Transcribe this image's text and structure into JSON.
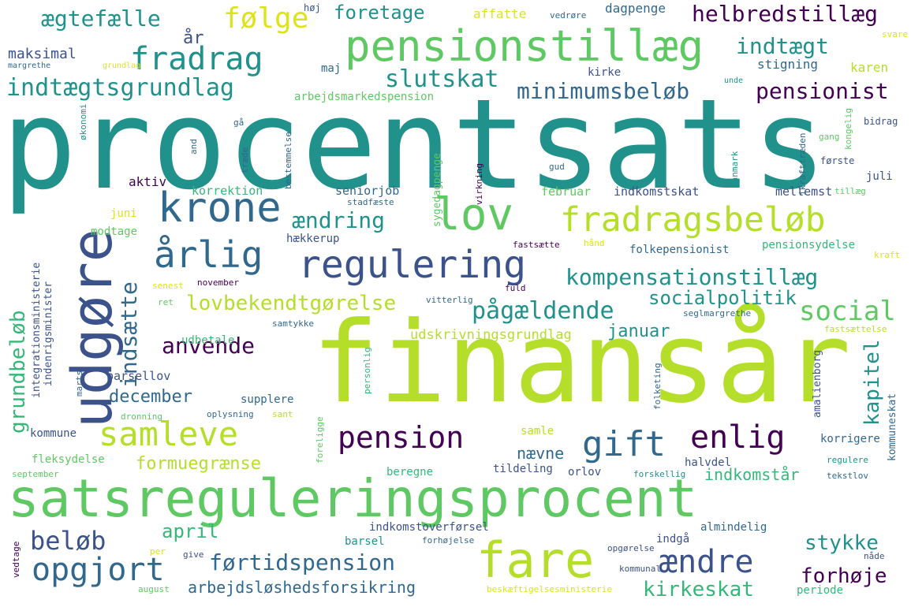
{
  "palette": {
    "background": "#ffffff",
    "dark_purple": "#440154",
    "indigo": "#3b528b",
    "teal_blue": "#31688e",
    "teal": "#21918c",
    "green_teal": "#35b779",
    "green": "#5ec962",
    "lime": "#b5de2b",
    "yellow": "#dce319"
  },
  "words": [
    {
      "text": "procentsats",
      "color": "#21918c"
    },
    {
      "text": "finansår",
      "color": "#b5de2b"
    },
    {
      "text": "satsreguleringsprocent",
      "color": "#5ec962"
    },
    {
      "text": "udgøre",
      "color": "#3b528b"
    },
    {
      "text": "pensionstillæg",
      "color": "#5ec962"
    },
    {
      "text": "fradrag",
      "color": "#21918c"
    },
    {
      "text": "krone",
      "color": "#31688e"
    },
    {
      "text": "lov",
      "color": "#5ec962"
    },
    {
      "text": "fradragsbeløb",
      "color": "#b5de2b"
    },
    {
      "text": "regulering",
      "color": "#3b528b"
    },
    {
      "text": "årlig",
      "color": "#31688e"
    },
    {
      "text": "samleve",
      "color": "#b5de2b"
    },
    {
      "text": "pension",
      "color": "#440154"
    },
    {
      "text": "gift",
      "color": "#31688e"
    },
    {
      "text": "enlig",
      "color": "#440154"
    },
    {
      "text": "fare",
      "color": "#b5de2b"
    },
    {
      "text": "opgjort",
      "color": "#31688e"
    },
    {
      "text": "ændre",
      "color": "#3b528b"
    },
    {
      "text": "indtægtsgrundlag",
      "color": "#21918c"
    },
    {
      "text": "ægtefælle",
      "color": "#21918c"
    },
    {
      "text": "følge",
      "color": "#dce319"
    },
    {
      "text": "foretage",
      "color": "#21918c"
    },
    {
      "text": "helbredstillæg",
      "color": "#440154"
    },
    {
      "text": "indtægt",
      "color": "#21918c"
    },
    {
      "text": "slutskat",
      "color": "#21918c"
    },
    {
      "text": "minimumsbeløb",
      "color": "#31688e"
    },
    {
      "text": "pensionist",
      "color": "#440154"
    },
    {
      "text": "kompensationstillæg",
      "color": "#21918c"
    },
    {
      "text": "ændring",
      "color": "#21918c"
    },
    {
      "text": "lovbekendtgørelse",
      "color": "#b5de2b"
    },
    {
      "text": "pågældende",
      "color": "#21918c"
    },
    {
      "text": "socialpolitik",
      "color": "#21918c"
    },
    {
      "text": "social",
      "color": "#5ec962"
    },
    {
      "text": "anvende",
      "color": "#440154"
    },
    {
      "text": "januar",
      "color": "#21918c"
    },
    {
      "text": "kapitel",
      "color": "#21918c"
    },
    {
      "text": "udskrivningsgrundlag",
      "color": "#b5de2b"
    },
    {
      "text": "december",
      "color": "#31688e"
    },
    {
      "text": "grundbeløb",
      "color": "#35b779"
    },
    {
      "text": "indsætte",
      "color": "#31688e"
    },
    {
      "text": "førtidspension",
      "color": "#31688e"
    },
    {
      "text": "arbejdsløshedsforsikring",
      "color": "#31688e"
    },
    {
      "text": "kirkeskat",
      "color": "#35b779"
    },
    {
      "text": "forhøje",
      "color": "#440154"
    },
    {
      "text": "stykke",
      "color": "#21918c"
    },
    {
      "text": "beløb",
      "color": "#3b528b"
    },
    {
      "text": "april",
      "color": "#35b779"
    },
    {
      "text": "formuegrænse",
      "color": "#b5de2b"
    },
    {
      "text": "nævne",
      "color": "#31688e"
    },
    {
      "text": "indkomstår",
      "color": "#35b779"
    },
    {
      "text": "maksimal",
      "color": "#3b528b"
    },
    {
      "text": "år",
      "color": "#3b528b"
    },
    {
      "text": "affatte",
      "color": "#dce319"
    },
    {
      "text": "dagpenge",
      "color": "#31688e"
    },
    {
      "text": "høj",
      "color": "#3b528b"
    },
    {
      "text": "vedrøre",
      "color": "#31688e"
    },
    {
      "text": "svare",
      "color": "#dce319"
    },
    {
      "text": "stigning",
      "color": "#31688e"
    },
    {
      "text": "karen",
      "color": "#b5de2b"
    },
    {
      "text": "maj",
      "color": "#31688e"
    },
    {
      "text": "kirke",
      "color": "#3b528b"
    },
    {
      "text": "arbejdsmarkedspension",
      "color": "#5ec962"
    },
    {
      "text": "grundlag",
      "color": "#dce319"
    },
    {
      "text": "margrethe",
      "color": "#31688e"
    },
    {
      "text": "unde",
      "color": "#21918c"
    },
    {
      "text": "aktiv",
      "color": "#440154"
    },
    {
      "text": "korrektion",
      "color": "#35b779"
    },
    {
      "text": "seniorjob",
      "color": "#31688e"
    },
    {
      "text": "februar",
      "color": "#5ec962"
    },
    {
      "text": "indkomstskat",
      "color": "#3b528b"
    },
    {
      "text": "mellemst",
      "color": "#3b528b"
    },
    {
      "text": "juli",
      "color": "#3b528b"
    },
    {
      "text": "juni",
      "color": "#dce319"
    },
    {
      "text": "modtage",
      "color": "#5ec962"
    },
    {
      "text": "hækkerup",
      "color": "#3b528b"
    },
    {
      "text": "folkepensionist",
      "color": "#31688e"
    },
    {
      "text": "pensionsydelse",
      "color": "#35b779"
    },
    {
      "text": "udbetale",
      "color": "#35b779"
    },
    {
      "text": "barsellov",
      "color": "#3b528b"
    },
    {
      "text": "supplere",
      "color": "#31688e"
    },
    {
      "text": "kommune",
      "color": "#3b528b"
    },
    {
      "text": "fleksydelse",
      "color": "#5ec962"
    },
    {
      "text": "samle",
      "color": "#b5de2b"
    },
    {
      "text": "korrigere",
      "color": "#31688e"
    },
    {
      "text": "halvdel",
      "color": "#3b528b"
    },
    {
      "text": "tildeling",
      "color": "#3b528b"
    },
    {
      "text": "orlov",
      "color": "#3b528b"
    },
    {
      "text": "beregne",
      "color": "#35b779"
    },
    {
      "text": "indkomstoverførsel",
      "color": "#3b528b"
    },
    {
      "text": "almindelig",
      "color": "#31688e"
    },
    {
      "text": "indgå",
      "color": "#3b528b"
    },
    {
      "text": "barsel",
      "color": "#21918c"
    },
    {
      "text": "periode",
      "color": "#35b779"
    },
    {
      "text": "kommuneskat",
      "color": "#31688e"
    },
    {
      "text": "amalienborg",
      "color": "#3b528b"
    },
    {
      "text": "integrationsministerie",
      "color": "#3b528b"
    },
    {
      "text": "indenrigsminister",
      "color": "#3b528b"
    },
    {
      "text": "sygedagpenge",
      "color": "#5ec962"
    },
    {
      "text": "bestemmelse",
      "color": "#31688e"
    },
    {
      "text": "ikrafttræden",
      "color": "#31688e"
    },
    {
      "text": "virkning",
      "color": "#440154"
    },
    {
      "text": "danmark",
      "color": "#21918c"
    },
    {
      "text": "kongelig",
      "color": "#5ec962"
    },
    {
      "text": "bidrag",
      "color": "#3b528b"
    },
    {
      "text": "gang",
      "color": "#5ec962"
    },
    {
      "text": "første",
      "color": "#3b528b"
    },
    {
      "text": "tillæg",
      "color": "#5ec962"
    },
    {
      "text": "gud",
      "color": "#31688e"
    },
    {
      "text": "stadfæste",
      "color": "#31688e"
    },
    {
      "text": "økonomi",
      "color": "#21918c"
    },
    {
      "text": "and",
      "color": "#31688e"
    },
    {
      "text": "træde",
      "color": "#31688e"
    },
    {
      "text": "gå",
      "color": "#31688e"
    },
    {
      "text": "hånd",
      "color": "#dce319"
    },
    {
      "text": "fastsætte",
      "color": "#440154"
    },
    {
      "text": "kraft",
      "color": "#dce319"
    },
    {
      "text": "senest",
      "color": "#dce319"
    },
    {
      "text": "november",
      "color": "#440154"
    },
    {
      "text": "ret",
      "color": "#5ec962"
    },
    {
      "text": "vitterlig",
      "color": "#31688e"
    },
    {
      "text": "fuld",
      "color": "#440154"
    },
    {
      "text": "samtykke",
      "color": "#31688e"
    },
    {
      "text": "seglmargrethe",
      "color": "#31688e"
    },
    {
      "text": "fastsættelse",
      "color": "#b5de2b"
    },
    {
      "text": "personlig",
      "color": "#35b779"
    },
    {
      "text": "folketing",
      "color": "#31688e"
    },
    {
      "text": "marts",
      "color": "#31688e"
    },
    {
      "text": "dronning",
      "color": "#5ec962"
    },
    {
      "text": "oplysning",
      "color": "#31688e"
    },
    {
      "text": "sant",
      "color": "#b5de2b"
    },
    {
      "text": "foreligge",
      "color": "#5ec962"
    },
    {
      "text": "september",
      "color": "#5ec962"
    },
    {
      "text": "regulere",
      "color": "#21918c"
    },
    {
      "text": "forskellig",
      "color": "#21918c"
    },
    {
      "text": "tekstlov",
      "color": "#31688e"
    },
    {
      "text": "vedtage",
      "color": "#440154"
    },
    {
      "text": "per",
      "color": "#dce319"
    },
    {
      "text": "give",
      "color": "#3b528b"
    },
    {
      "text": "forhøjelse",
      "color": "#31688e"
    },
    {
      "text": "opgørelse",
      "color": "#3b528b"
    },
    {
      "text": "kommunal",
      "color": "#3b528b"
    },
    {
      "text": "nåde",
      "color": "#3b528b"
    },
    {
      "text": "august",
      "color": "#5ec962"
    },
    {
      "text": "beskæftigelsesministerie",
      "color": "#dce319"
    }
  ]
}
